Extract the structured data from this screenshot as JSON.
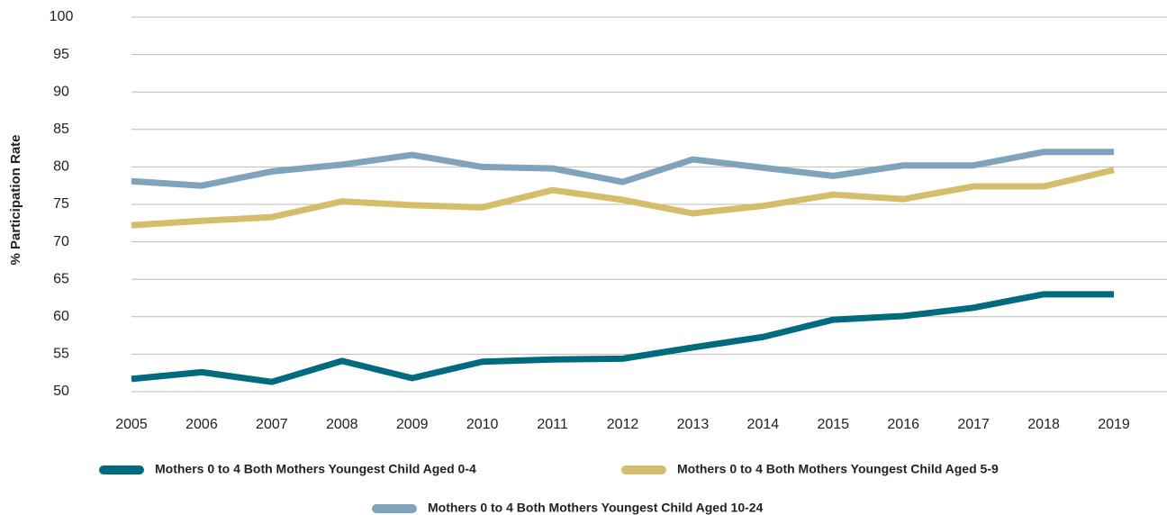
{
  "chart_data": {
    "type": "line",
    "y_axis_label": "% Participation Rate",
    "categories": [
      "2005",
      "2006",
      "2007",
      "2008",
      "2009",
      "2010",
      "2011",
      "2012",
      "2013",
      "2014",
      "2015",
      "2016",
      "2017",
      "2018",
      "2019"
    ],
    "series": [
      {
        "name": "Mothers 0 to 4 Both Mothers Youngest Child Aged 0-4",
        "color": "#006a7e",
        "values": [
          51.7,
          52.6,
          51.3,
          54.1,
          51.8,
          54.0,
          54.3,
          54.4,
          55.9,
          57.3,
          59.6,
          60.1,
          61.2,
          63.0,
          63.0
        ]
      },
      {
        "name": "Mothers 0 to 4 Both Mothers Youngest Child Aged 5-9",
        "color": "#d4bd6b",
        "values": [
          72.2,
          72.8,
          73.3,
          75.4,
          74.9,
          74.6,
          76.9,
          75.6,
          73.8,
          74.8,
          76.3,
          75.7,
          77.4,
          77.4,
          79.6
        ]
      },
      {
        "name": "Mothers 0 to 4 Both Mothers Youngest Child Aged 10-24",
        "color": "#7fa3ba",
        "values": [
          78.1,
          77.5,
          79.4,
          80.3,
          81.6,
          80.0,
          79.8,
          78.0,
          81.0,
          79.9,
          78.8,
          80.2,
          80.2,
          82.0,
          82.0
        ]
      }
    ],
    "ylim": [
      50,
      100
    ],
    "yticks": [
      50,
      55,
      60,
      65,
      70,
      75,
      80,
      85,
      90,
      95,
      100
    ],
    "grid": true
  }
}
